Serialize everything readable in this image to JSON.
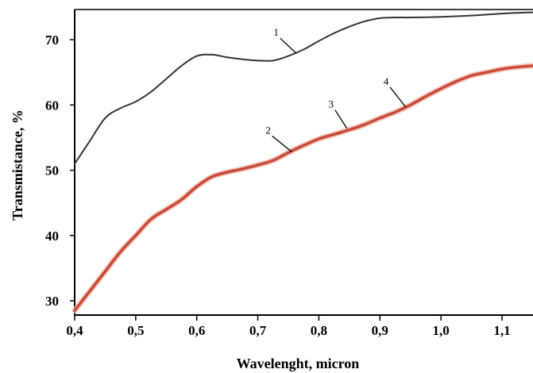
{
  "chart_data": {
    "type": "line",
    "xlabel": "Wavelenght, micron",
    "ylabel": "Transmistance, %",
    "xlim": [
      0.4,
      1.15
    ],
    "ylim": [
      28,
      75
    ],
    "xticks": [
      "0,4",
      "0,5",
      "0,6",
      "0,7",
      "0,8",
      "0,9",
      "1,0",
      "1,1"
    ],
    "xtick_values": [
      0.4,
      0.5,
      0.6,
      0.7,
      0.8,
      0.9,
      1.0,
      1.1
    ],
    "yticks": [
      "30",
      "40",
      "50",
      "60",
      "70"
    ],
    "ytick_values": [
      30,
      40,
      50,
      60,
      70
    ],
    "grid": false,
    "series": [
      {
        "name": "1",
        "color": "#333333",
        "x": [
          0.4,
          0.425,
          0.45,
          0.475,
          0.5,
          0.525,
          0.55,
          0.575,
          0.6,
          0.625,
          0.65,
          0.675,
          0.7,
          0.725,
          0.75,
          0.775,
          0.8,
          0.825,
          0.85,
          0.875,
          0.9,
          0.925,
          0.95,
          1.0,
          1.05,
          1.1,
          1.15
        ],
        "y": [
          51.0,
          54.5,
          58.0,
          59.5,
          60.5,
          62.0,
          64.0,
          66.0,
          67.5,
          67.7,
          67.3,
          67.0,
          66.8,
          66.8,
          67.5,
          68.5,
          69.8,
          71.0,
          72.0,
          72.8,
          73.3,
          73.4,
          73.4,
          73.5,
          73.7,
          74.0,
          74.2
        ]
      },
      {
        "name": "2",
        "color": "#c94a3a",
        "x": [
          0.4,
          0.425,
          0.45,
          0.475,
          0.5,
          0.525,
          0.55,
          0.575,
          0.6,
          0.625,
          0.65,
          0.675,
          0.7,
          0.725,
          0.75,
          0.775,
          0.8,
          0.825,
          0.85,
          0.875,
          0.9,
          0.925,
          0.95,
          0.975,
          1.0,
          1.025,
          1.05,
          1.075,
          1.1,
          1.125,
          1.15
        ],
        "y": [
          28.5,
          31.5,
          34.5,
          37.5,
          40.0,
          42.5,
          44.0,
          45.5,
          47.5,
          49.0,
          49.7,
          50.2,
          50.8,
          51.5,
          52.7,
          53.8,
          54.8,
          55.5,
          56.2,
          57.0,
          58.0,
          58.9,
          60.0,
          61.3,
          62.5,
          63.6,
          64.5,
          65.0,
          65.5,
          65.8,
          66.0
        ]
      }
    ],
    "annotations": [
      {
        "text": "1",
        "x": 0.73,
        "y": 70.6,
        "x_to": 0.763,
        "y_to": 67.9
      },
      {
        "text": "2",
        "x": 0.717,
        "y": 55.6,
        "x_to": 0.756,
        "y_to": 52.8
      },
      {
        "text": "3",
        "x": 0.82,
        "y": 59.6,
        "x_to": 0.846,
        "y_to": 56.4
      },
      {
        "text": "4",
        "x": 0.91,
        "y": 63.1,
        "x_to": 0.942,
        "y_to": 59.7
      }
    ]
  }
}
